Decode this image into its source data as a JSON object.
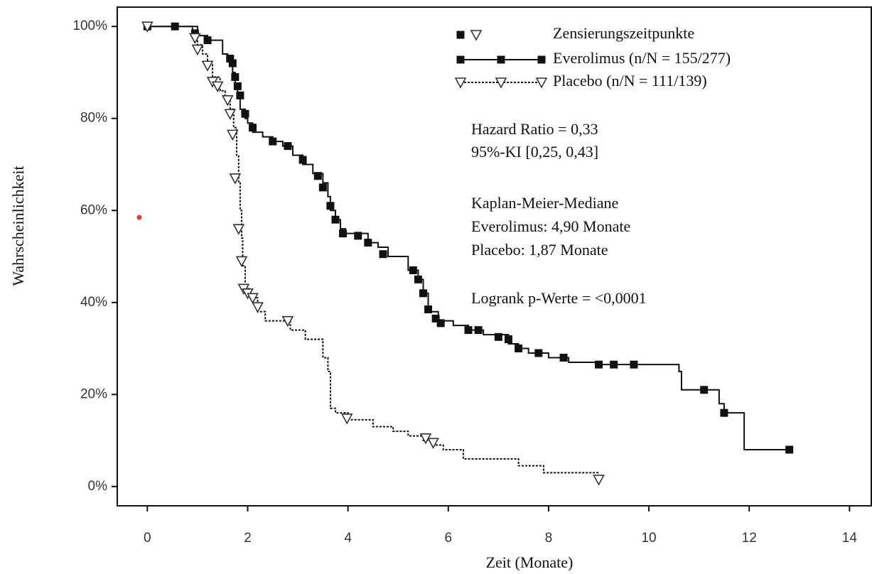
{
  "chart_data": {
    "type": "line",
    "step": "post",
    "xlabel": "Zeit (Monate)",
    "ylabel": "Wahrscheinlichkeit",
    "xlim": [
      -0.6,
      14.42
    ],
    "ylim": [
      -4.2,
      104.2
    ],
    "xticks": [
      0,
      2,
      4,
      6,
      8,
      10,
      12,
      14
    ],
    "yticks": [
      {
        "value": 0,
        "label": "0%"
      },
      {
        "value": 20,
        "label": "20%"
      },
      {
        "value": 40,
        "label": "40%"
      },
      {
        "value": 60,
        "label": "60%"
      },
      {
        "value": 80,
        "label": "80%"
      },
      {
        "value": 100,
        "label": "100%"
      }
    ],
    "censor_label": "Zensierungszeitpunkte",
    "series": [
      {
        "name": "Everolimus (n/N = 155/277)",
        "color": "#111111",
        "marker": "square",
        "dash": "solid",
        "x": [
          0,
          0.6,
          1.0,
          1.2,
          1.5,
          1.6,
          1.7,
          1.75,
          1.8,
          1.85,
          1.95,
          2.0,
          2.1,
          2.3,
          2.5,
          2.7,
          2.9,
          3.1,
          3.3,
          3.5,
          3.6,
          3.65,
          3.75,
          3.85,
          3.95,
          4.4,
          4.6,
          4.8,
          5.2,
          5.4,
          5.5,
          5.6,
          5.8,
          6.1,
          6.4,
          6.7,
          7.2,
          7.4,
          7.6,
          8.0,
          8.4,
          9.0,
          10.6,
          10.65,
          11.4,
          11.5,
          11.9,
          12.8
        ],
        "values": [
          100,
          100,
          98,
          97,
          94,
          93,
          90,
          87,
          85,
          82,
          80,
          79,
          77,
          76,
          75,
          74,
          72,
          70,
          68,
          66,
          63,
          60,
          58,
          56,
          55,
          53,
          52,
          50,
          47,
          45,
          42,
          38,
          36,
          35,
          34,
          33,
          31,
          30,
          29,
          28,
          27,
          26.5,
          25,
          21,
          18,
          16,
          8,
          8
        ],
        "censored_x": [
          0,
          0.55,
          0.95,
          1.2,
          1.65,
          1.7,
          1.75,
          1.8,
          1.85,
          1.95,
          2.1,
          2.5,
          2.8,
          3.1,
          3.4,
          3.5,
          3.65,
          3.75,
          3.9,
          4.2,
          4.4,
          4.7,
          5.3,
          5.4,
          5.5,
          5.6,
          5.75,
          5.85,
          6.4,
          6.6,
          7.0,
          7.2,
          7.4,
          7.8,
          8.3,
          9.0,
          9.3,
          9.7,
          11.1,
          11.5,
          12.8
        ],
        "censored_y": [
          100,
          100,
          98.5,
          97,
          93,
          92,
          89,
          87,
          85,
          81,
          78,
          75,
          74,
          71,
          67.5,
          65,
          61,
          58,
          55,
          54.5,
          53,
          50.5,
          47,
          45,
          42,
          38.5,
          36.5,
          35.5,
          34,
          34,
          32.5,
          32,
          30,
          29,
          28,
          26.5,
          26.5,
          26.5,
          21,
          16,
          8
        ]
      },
      {
        "name": "Placebo (n/N = 111/139)",
        "color": "#111111",
        "marker": "triangle",
        "dash": "dotted",
        "x": [
          0,
          0.6,
          0.9,
          1.0,
          1.1,
          1.2,
          1.3,
          1.45,
          1.55,
          1.65,
          1.72,
          1.78,
          1.82,
          1.85,
          1.88,
          1.9,
          1.95,
          2.05,
          2.2,
          2.35,
          2.85,
          3.15,
          3.5,
          3.6,
          3.65,
          3.75,
          4.0,
          4.5,
          4.9,
          5.2,
          5.5,
          5.7,
          5.9,
          6.3,
          7.4,
          7.9,
          9.0
        ],
        "values": [
          100,
          100,
          98,
          96,
          94,
          92,
          89,
          86,
          84,
          82,
          78,
          72,
          66,
          60,
          54,
          48,
          43,
          41,
          38,
          36,
          34,
          32,
          28,
          25,
          17,
          16,
          14.5,
          13,
          12,
          11,
          10,
          9,
          8,
          6,
          4.5,
          3,
          3
        ],
        "censored_x": [
          0,
          0.95,
          1.0,
          1.2,
          1.3,
          1.4,
          1.6,
          1.65,
          1.7,
          1.75,
          1.82,
          1.88,
          1.92,
          2.0,
          2.1,
          2.2,
          2.8,
          3.98,
          5.55,
          5.7,
          9.0
        ],
        "censored_y": [
          100,
          97.5,
          95,
          91.5,
          88,
          87,
          84,
          81,
          76.5,
          67,
          56,
          49,
          43,
          42,
          41,
          39,
          36,
          14.8,
          10.5,
          9.5,
          1.5
        ]
      }
    ],
    "annotations": [
      "Hazard Ratio = 0,33",
      "95%-KI [0,25, 0,43]",
      "Kaplan-Meier-Mediane",
      "Everolimus: 4,90 Monate",
      "Placebo: 1,87 Monate",
      "Logrank p-Werte = <0,0001"
    ]
  }
}
